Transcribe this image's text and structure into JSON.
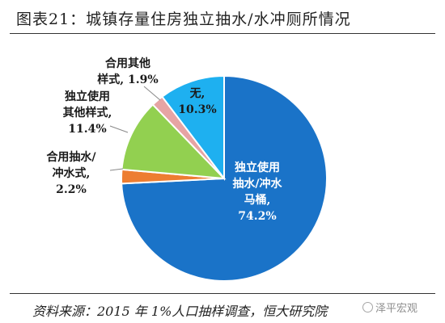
{
  "title": "图表21：城镇存量住房独立抽水/水冲厕所情况",
  "source": "资料来源：2015 年 1%人口抽样调查，恒大研究院",
  "watermark": "泽平宏观",
  "chart_data": {
    "type": "pie",
    "title": "图表21：城镇存量住房独立抽水/水冲厕所情况",
    "slices": [
      {
        "label": "独立使用抽水/冲水马桶",
        "value": 74.2,
        "label_lines": [
          "独立使用",
          "抽水/冲水",
          "马桶,",
          "74.2%"
        ],
        "color": "#1a73c8",
        "text_color": "#ffffff"
      },
      {
        "label": "合用抽水/冲水式",
        "value": 2.2,
        "label_lines": [
          "合用抽水/",
          "冲水式,",
          "2.2%"
        ],
        "color": "#ed7d31",
        "text_color": "#1a1a1a"
      },
      {
        "label": "独立使用其他样式",
        "value": 11.4,
        "label_lines": [
          "独立使用",
          "其他样式,",
          "11.4%"
        ],
        "color": "#92d050",
        "text_color": "#1a1a1a"
      },
      {
        "label": "合用其他样式",
        "value": 1.9,
        "label_lines": [
          "合用其他",
          "样式, 1.9%"
        ],
        "color": "#e6a4a4",
        "text_color": "#1a1a1a"
      },
      {
        "label": "无",
        "value": 10.3,
        "label_lines": [
          "无,",
          "10.3%"
        ],
        "color": "#1eb0f0",
        "text_color": "#1a1a1a"
      }
    ]
  }
}
